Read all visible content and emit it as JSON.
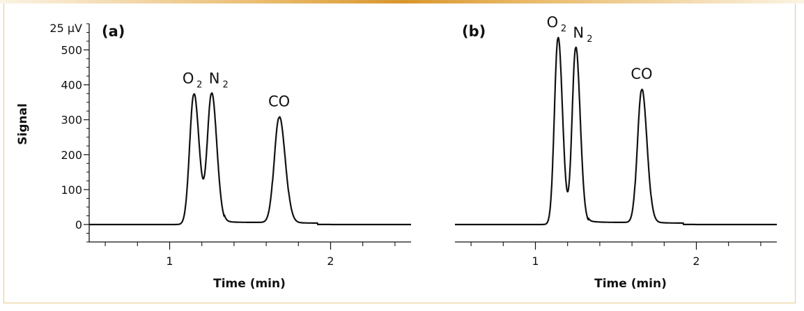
{
  "chart_data": [
    {
      "type": "line",
      "panel_label": "(a)",
      "xlabel": "Time (min)",
      "ylabel": "Signal",
      "y_top_label": "25 µV",
      "xlim": [
        0.5,
        2.5
      ],
      "ylim": [
        -50,
        575
      ],
      "x_ticks": [
        1,
        2
      ],
      "y_ticks": [
        0,
        100,
        200,
        300,
        400,
        500
      ],
      "peaks": [
        {
          "label": "O",
          "sub": "2",
          "x": 1.15,
          "height": 372,
          "width": 0.026
        },
        {
          "label": "N",
          "sub": "2",
          "x": 1.26,
          "height": 372,
          "width": 0.026
        },
        {
          "label": "CO",
          "sub": "",
          "x": 1.68,
          "height": 306,
          "width": 0.03
        }
      ]
    },
    {
      "type": "line",
      "panel_label": "(b)",
      "xlabel": "Time (min)",
      "ylabel": "",
      "xlim": [
        0.5,
        2.5
      ],
      "ylim": [
        -50,
        575
      ],
      "x_ticks": [
        1,
        2
      ],
      "y_ticks": [],
      "peaks": [
        {
          "label": "O",
          "sub": "2",
          "x": 1.14,
          "height": 533,
          "width": 0.022
        },
        {
          "label": "N",
          "sub": "2",
          "x": 1.25,
          "height": 503,
          "width": 0.022
        },
        {
          "label": "CO",
          "sub": "",
          "x": 1.66,
          "height": 385,
          "width": 0.026
        }
      ]
    }
  ]
}
